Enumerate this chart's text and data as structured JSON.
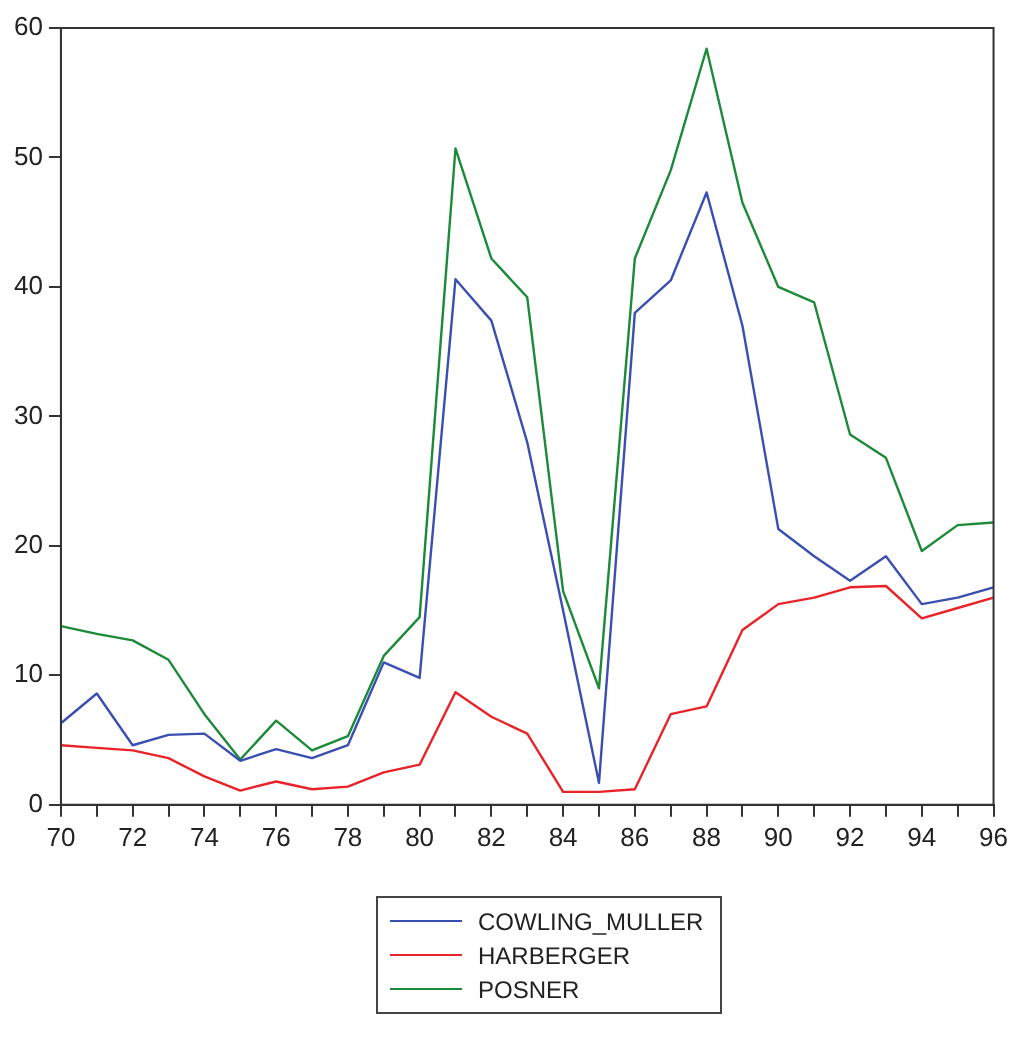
{
  "chart_data": {
    "type": "line",
    "x": [
      70,
      71,
      72,
      73,
      74,
      75,
      76,
      77,
      78,
      79,
      80,
      81,
      82,
      83,
      84,
      85,
      86,
      87,
      88,
      89,
      90,
      91,
      92,
      93,
      94,
      95,
      96
    ],
    "series": [
      {
        "name": "COWLING_MULLER",
        "color": "#3b4fb0",
        "values": [
          6.3,
          8.6,
          4.6,
          5.4,
          5.5,
          3.4,
          4.3,
          3.6,
          4.6,
          11,
          9.8,
          40.6,
          37.4,
          28,
          15,
          1.7,
          38,
          40.5,
          47.3,
          37,
          21.3,
          19.2,
          17.3,
          19.2,
          15.5,
          16,
          16.8
        ]
      },
      {
        "name": "HARBERGER",
        "color": "#e8242a",
        "values": [
          4.6,
          4.4,
          4.2,
          3.6,
          2.2,
          1.1,
          1.8,
          1.2,
          1.4,
          2.5,
          3.1,
          8.7,
          6.8,
          5.5,
          1.0,
          1.0,
          1.2,
          7,
          7.6,
          13.5,
          15.5,
          16,
          16.8,
          16.9,
          14.4,
          15.2,
          16
        ]
      },
      {
        "name": "POSNER",
        "color": "#1d8a3a",
        "values": [
          13.8,
          13.2,
          12.7,
          11.2,
          7,
          3.5,
          6.5,
          4.2,
          5.3,
          11.5,
          14.5,
          50.7,
          42.2,
          39.2,
          16.5,
          9,
          42.2,
          49,
          58.4,
          46.5,
          40,
          38.8,
          28.6,
          26.8,
          19.6,
          21.6,
          21.8
        ]
      }
    ],
    "xlim": [
      70,
      96
    ],
    "xticks": [
      70,
      {
        "value": 71,
        "label": null
      },
      72,
      {
        "value": 73,
        "label": null
      },
      74,
      {
        "value": 75,
        "label": null
      },
      76,
      {
        "value": 77,
        "label": null
      },
      78,
      {
        "value": 79,
        "label": null
      },
      80,
      {
        "value": 81,
        "label": null
      },
      82,
      {
        "value": 83,
        "label": null
      },
      84,
      {
        "value": 85,
        "label": null
      },
      86,
      {
        "value": 87,
        "label": null
      },
      88,
      {
        "value": 89,
        "label": null
      },
      90,
      {
        "value": 91,
        "label": null
      },
      92,
      {
        "value": 93,
        "label": null
      },
      94,
      {
        "value": 95,
        "label": null
      },
      96
    ],
    "ylim": [
      0,
      60
    ],
    "yticks": [
      0,
      10,
      20,
      30,
      40,
      50,
      60
    ],
    "grid": false,
    "legend": "bottom",
    "marker": "none",
    "line_style": "solid"
  }
}
